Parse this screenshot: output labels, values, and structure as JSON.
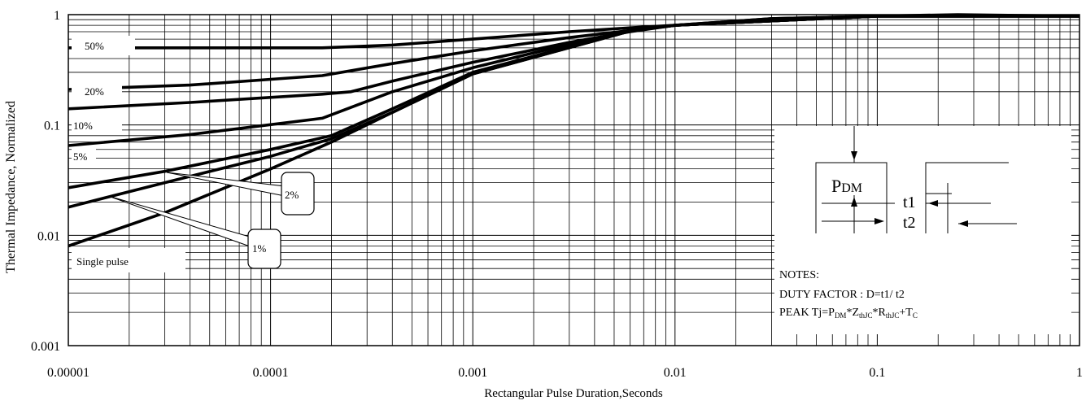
{
  "chart_data": {
    "type": "line",
    "xlabel": "Rectangular Pulse Duration,Seconds",
    "ylabel": "Thermal Impedance, Normalized",
    "xscale": "log",
    "yscale": "log",
    "xlim": [
      1e-05,
      1
    ],
    "ylim": [
      0.001,
      1
    ],
    "grid": true,
    "x_ticks": [
      {
        "value": 1e-05,
        "label": "0.00001"
      },
      {
        "value": 0.0001,
        "label": "0.0001"
      },
      {
        "value": 0.001,
        "label": "0.001"
      },
      {
        "value": 0.01,
        "label": "0.01"
      },
      {
        "value": 0.1,
        "label": "0.1"
      },
      {
        "value": 1,
        "label": "1"
      }
    ],
    "y_ticks": [
      {
        "value": 0.001,
        "label": "0.001"
      },
      {
        "value": 0.01,
        "label": "0.01"
      },
      {
        "value": 0.1,
        "label": "0.1"
      },
      {
        "value": 1,
        "label": "1"
      }
    ],
    "series": [
      {
        "name": "50%",
        "x": [
          1e-05,
          0.00018,
          0.0004,
          0.001,
          0.003,
          0.006,
          0.01,
          0.03,
          0.1,
          0.25,
          1
        ],
        "y": [
          0.5,
          0.5,
          0.53,
          0.6,
          0.7,
          0.76,
          0.8,
          0.92,
          0.97,
          1.0,
          0.97
        ]
      },
      {
        "name": "20%",
        "x": [
          1e-05,
          4e-05,
          0.00018,
          0.0004,
          0.001,
          0.003,
          0.006,
          0.01,
          0.03,
          0.1,
          1
        ],
        "y": [
          0.21,
          0.23,
          0.28,
          0.36,
          0.47,
          0.62,
          0.72,
          0.8,
          0.92,
          0.97,
          0.97
        ]
      },
      {
        "name": "10%",
        "x": [
          1e-05,
          4e-05,
          0.00018,
          0.00025,
          0.0004,
          0.001,
          0.003,
          0.006,
          0.01,
          0.1,
          1
        ],
        "y": [
          0.14,
          0.16,
          0.19,
          0.2,
          0.25,
          0.37,
          0.56,
          0.7,
          0.8,
          0.97,
          0.97
        ]
      },
      {
        "name": "5%",
        "x": [
          1e-05,
          4e-05,
          0.00018,
          0.0004,
          0.001,
          0.002,
          0.006,
          0.01,
          0.1,
          1
        ],
        "y": [
          0.065,
          0.082,
          0.115,
          0.2,
          0.33,
          0.45,
          0.72,
          0.8,
          0.97,
          0.97
        ]
      },
      {
        "name": "2%",
        "x": [
          1e-05,
          3e-05,
          0.0001,
          0.0002,
          0.0004,
          0.001,
          0.002,
          0.006,
          0.01,
          0.1,
          1
        ],
        "y": [
          0.027,
          0.038,
          0.06,
          0.08,
          0.14,
          0.3,
          0.42,
          0.72,
          0.8,
          0.97,
          0.97
        ]
      },
      {
        "name": "1%",
        "x": [
          1e-05,
          3e-05,
          0.0001,
          0.0002,
          0.0004,
          0.001,
          0.002,
          0.006,
          0.01,
          0.1,
          1
        ],
        "y": [
          0.018,
          0.03,
          0.052,
          0.075,
          0.13,
          0.29,
          0.41,
          0.71,
          0.8,
          0.97,
          0.97
        ]
      },
      {
        "name": "Single pulse",
        "x": [
          1e-05,
          3e-05,
          0.0001,
          0.0002,
          0.0004,
          0.001,
          0.002,
          0.006,
          0.01,
          0.1,
          1
        ],
        "y": [
          0.008,
          0.016,
          0.04,
          0.07,
          0.13,
          0.29,
          0.41,
          0.71,
          0.8,
          0.97,
          0.97
        ]
      }
    ]
  },
  "labels": {
    "d50": "50%",
    "d20": "20%",
    "d10": "10%",
    "d5": "5%",
    "d2": "2%",
    "d1": "1%",
    "single": "Single pulse"
  },
  "inset": {
    "pdm_main": "P",
    "pdm_sub": "DM",
    "t1": "t1",
    "t2": "t2",
    "notes_title": "NOTES:",
    "duty_factor": "DUTY FACTOR : D=t1/ t2",
    "peak_prefix": "PEAK Tj=P",
    "peak_sub1": "DM",
    "peak_mid1": "*Z",
    "peak_sub2": "thJC",
    "peak_mid2": "*R",
    "peak_sub3": "thJC",
    "peak_mid3": "+T",
    "peak_sub4": "C"
  }
}
